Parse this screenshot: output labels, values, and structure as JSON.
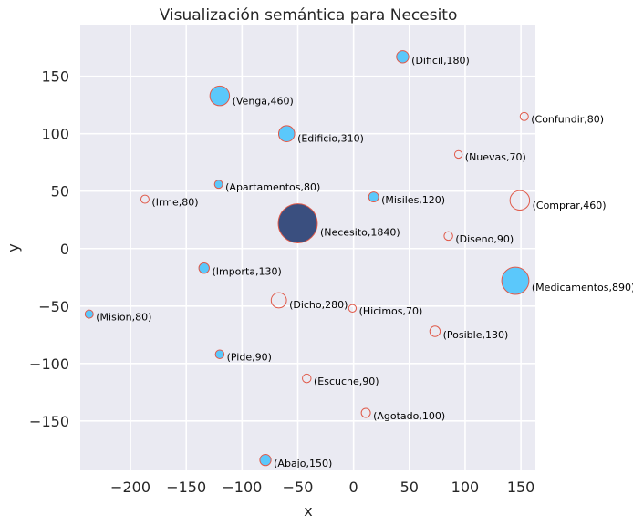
{
  "chart_data": {
    "type": "scatter",
    "title": "Visualización semántica para Necesito",
    "xlabel": "x",
    "ylabel": "y",
    "xlim": [
      -245,
      163
    ],
    "ylim": [
      -193,
      195
    ],
    "xticks": [
      -200,
      -150,
      -100,
      -50,
      0,
      50,
      100,
      150
    ],
    "yticks": [
      -150,
      -100,
      -50,
      0,
      50,
      100,
      150
    ],
    "xtick_labels": [
      "−200",
      "−150",
      "−100",
      "−50",
      "0",
      "50",
      "100",
      "150"
    ],
    "ytick_labels": [
      "−150",
      "−100",
      "−50",
      "0",
      "50",
      "100",
      "150"
    ],
    "grid": true,
    "colors": {
      "background": "#eaeaf2",
      "grid": "#ffffff",
      "filled": "#5bc8fb",
      "focus": "#3a4f7f",
      "edge": "#e05a4a"
    },
    "points": [
      {
        "word": "Necesito",
        "count": 1840,
        "x": -50,
        "y": 22,
        "style": "focus",
        "label": "(Necesito,1840)"
      },
      {
        "word": "Medicamentos",
        "count": 890,
        "x": 145,
        "y": -28,
        "style": "filled",
        "label": "(Medicamentos,890)"
      },
      {
        "word": "Venga",
        "count": 460,
        "x": -120,
        "y": 133,
        "style": "filled",
        "label": "(Venga,460)"
      },
      {
        "word": "Comprar",
        "count": 460,
        "x": 149,
        "y": 42,
        "style": "hollow",
        "label": "(Comprar,460)"
      },
      {
        "word": "Edificio",
        "count": 310,
        "x": -60,
        "y": 100,
        "style": "filled",
        "label": "(Edificio,310)"
      },
      {
        "word": "Dicho",
        "count": 280,
        "x": -67,
        "y": -45,
        "style": "hollow",
        "label": "(Dicho,280)"
      },
      {
        "word": "Dificil",
        "count": 180,
        "x": 44,
        "y": 167,
        "style": "filled",
        "label": "(Dificil,180)"
      },
      {
        "word": "Abajo",
        "count": 150,
        "x": -79,
        "y": -184,
        "style": "filled",
        "label": "(Abajo,150)"
      },
      {
        "word": "Importa",
        "count": 130,
        "x": -134,
        "y": -17,
        "style": "filled",
        "label": "(Importa,130)"
      },
      {
        "word": "Posible",
        "count": 130,
        "x": 73,
        "y": -72,
        "style": "hollow",
        "label": "(Posible,130)"
      },
      {
        "word": "Misiles",
        "count": 120,
        "x": 18,
        "y": 45,
        "style": "filled",
        "label": "(Misiles,120)"
      },
      {
        "word": "Agotado",
        "count": 100,
        "x": 11,
        "y": -143,
        "style": "hollow",
        "label": "(Agotado,100)"
      },
      {
        "word": "Pide",
        "count": 90,
        "x": -120,
        "y": -92,
        "style": "filled",
        "label": "(Pide,90)"
      },
      {
        "word": "Diseno",
        "count": 90,
        "x": 85,
        "y": 11,
        "style": "hollow",
        "label": "(Diseno,90)"
      },
      {
        "word": "Escuche",
        "count": 90,
        "x": -42,
        "y": -113,
        "style": "hollow",
        "label": "(Escuche,90)"
      },
      {
        "word": "Apartamentos",
        "count": 80,
        "x": -121,
        "y": 56,
        "style": "filled",
        "label": "(Apartamentos,80)"
      },
      {
        "word": "Irme",
        "count": 80,
        "x": -187,
        "y": 43,
        "style": "hollow",
        "label": "(Irme,80)"
      },
      {
        "word": "Confundir",
        "count": 80,
        "x": 153,
        "y": 115,
        "style": "hollow",
        "label": "(Confundir,80)"
      },
      {
        "word": "Mision",
        "count": 80,
        "x": -237,
        "y": -57,
        "style": "filled",
        "label": "(Mision,80)"
      },
      {
        "word": "Nuevas",
        "count": 70,
        "x": 94,
        "y": 82,
        "style": "hollow",
        "label": "(Nuevas,70)"
      },
      {
        "word": "Hicimos",
        "count": 70,
        "x": -1,
        "y": -52,
        "style": "hollow",
        "label": "(Hicimos,70)"
      }
    ]
  }
}
